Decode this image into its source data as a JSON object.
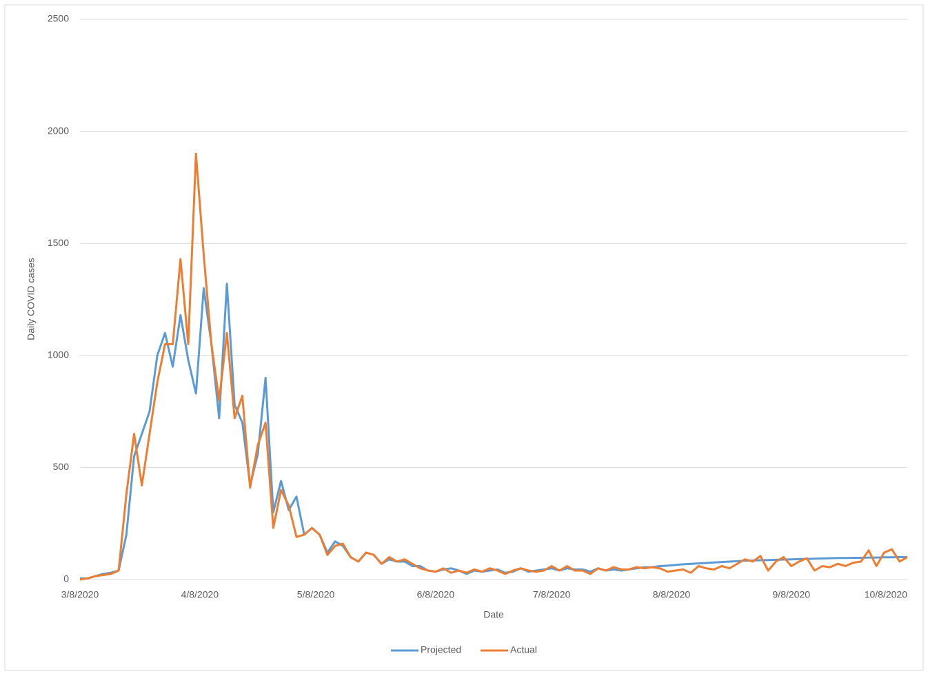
{
  "chart_data": {
    "type": "line",
    "x_label": "Date",
    "y_label": "Daily COVID cases",
    "x": [
      "3/8/2020",
      "3/10/2020",
      "3/12/2020",
      "3/14/2020",
      "3/16/2020",
      "3/18/2020",
      "3/20/2020",
      "3/22/2020",
      "3/24/2020",
      "3/26/2020",
      "3/28/2020",
      "3/30/2020",
      "4/1/2020",
      "4/3/2020",
      "4/5/2020",
      "4/7/2020",
      "4/9/2020",
      "4/11/2020",
      "4/13/2020",
      "4/15/2020",
      "4/17/2020",
      "4/19/2020",
      "4/21/2020",
      "4/23/2020",
      "4/25/2020",
      "4/27/2020",
      "4/29/2020",
      "5/1/2020",
      "5/3/2020",
      "5/5/2020",
      "5/7/2020",
      "5/9/2020",
      "5/11/2020",
      "5/13/2020",
      "5/15/2020",
      "5/17/2020",
      "5/19/2020",
      "5/21/2020",
      "5/23/2020",
      "5/25/2020",
      "5/27/2020",
      "5/29/2020",
      "5/31/2020",
      "6/2/2020",
      "6/4/2020",
      "6/6/2020",
      "6/8/2020",
      "6/10/2020",
      "6/12/2020",
      "6/14/2020",
      "6/16/2020",
      "6/18/2020",
      "6/20/2020",
      "6/22/2020",
      "6/24/2020",
      "6/26/2020",
      "6/28/2020",
      "6/30/2020",
      "7/2/2020",
      "7/4/2020",
      "7/6/2020",
      "7/8/2020",
      "7/10/2020",
      "7/12/2020",
      "7/14/2020",
      "7/16/2020",
      "7/18/2020",
      "7/20/2020",
      "7/22/2020",
      "7/24/2020",
      "7/26/2020",
      "7/28/2020",
      "7/30/2020",
      "8/1/2020",
      "8/3/2020",
      "8/5/2020",
      "8/7/2020",
      "8/9/2020",
      "8/11/2020",
      "8/13/2020",
      "8/15/2020",
      "8/17/2020",
      "8/19/2020",
      "8/21/2020",
      "8/23/2020",
      "8/25/2020",
      "8/27/2020",
      "8/29/2020",
      "8/31/2020",
      "9/2/2020",
      "9/4/2020",
      "9/6/2020",
      "9/8/2020",
      "9/10/2020",
      "9/12/2020",
      "9/14/2020",
      "9/16/2020",
      "9/18/2020",
      "9/20/2020",
      "9/22/2020",
      "9/24/2020",
      "9/26/2020",
      "9/28/2020",
      "9/30/2020",
      "10/2/2020",
      "10/4/2020",
      "10/6/2020",
      "10/8/2020"
    ],
    "series": [
      {
        "name": "Projected",
        "color": "#5b9bd5",
        "values": [
          5,
          5,
          15,
          25,
          30,
          40,
          200,
          550,
          650,
          750,
          1000,
          1100,
          950,
          1180,
          980,
          830,
          1300,
          1050,
          720,
          1320,
          780,
          700,
          420,
          560,
          900,
          300,
          440,
          310,
          370,
          200,
          230,
          200,
          120,
          170,
          150,
          100,
          80,
          120,
          110,
          70,
          90,
          80,
          80,
          60,
          60,
          40,
          35,
          45,
          50,
          40,
          25,
          40,
          35,
          40,
          45,
          30,
          35,
          50,
          35,
          40,
          45,
          50,
          40,
          50,
          45,
          45,
          35,
          50,
          40,
          45,
          40,
          45,
          50,
          55,
          55,
          60,
          62,
          65,
          68,
          70,
          72,
          74,
          76,
          78,
          80,
          82,
          84,
          85,
          86,
          87,
          88,
          89,
          90,
          91,
          92,
          93,
          94,
          95,
          96,
          96,
          97,
          97,
          98,
          98,
          99,
          99,
          100,
          100
        ]
      },
      {
        "name": "Actual",
        "color": "#ed7d31",
        "values": [
          0,
          5,
          15,
          20,
          25,
          40,
          380,
          650,
          420,
          650,
          880,
          1050,
          1050,
          1430,
          1050,
          1900,
          1450,
          1050,
          800,
          1100,
          720,
          820,
          410,
          600,
          700,
          230,
          400,
          330,
          190,
          200,
          230,
          200,
          110,
          150,
          160,
          100,
          80,
          120,
          110,
          70,
          100,
          80,
          90,
          70,
          50,
          40,
          35,
          50,
          30,
          40,
          30,
          45,
          35,
          50,
          40,
          25,
          40,
          50,
          40,
          35,
          40,
          60,
          40,
          60,
          40,
          40,
          25,
          50,
          40,
          55,
          45,
          45,
          55,
          50,
          55,
          50,
          35,
          40,
          45,
          30,
          60,
          50,
          45,
          60,
          50,
          70,
          90,
          80,
          105,
          40,
          80,
          100,
          60,
          80,
          95,
          40,
          60,
          55,
          70,
          60,
          75,
          80,
          130,
          60,
          120,
          135,
          80,
          100
        ]
      }
    ],
    "xlim": [
      "3/8/2020",
      "10/8/2020"
    ],
    "xticks": [
      "3/8/2020",
      "4/8/2020",
      "5/8/2020",
      "6/8/2020",
      "7/8/2020",
      "8/8/2020",
      "9/8/2020",
      "10/8/2020"
    ],
    "ylim": [
      0,
      2500
    ],
    "yticks": [
      0,
      500,
      1000,
      1500,
      2000,
      2500
    ],
    "grid": true,
    "legend": "bottom"
  }
}
